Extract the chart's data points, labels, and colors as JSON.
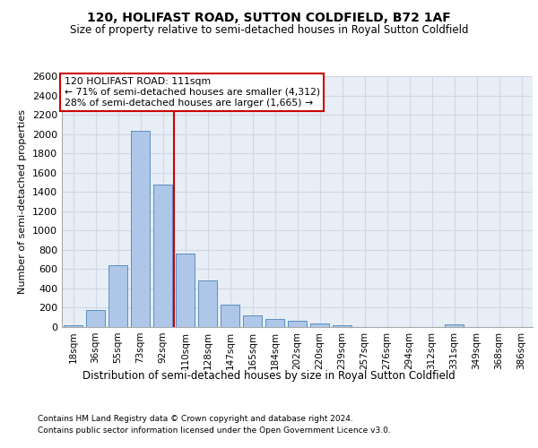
{
  "title": "120, HOLIFAST ROAD, SUTTON COLDFIELD, B72 1AF",
  "subtitle": "Size of property relative to semi-detached houses in Royal Sutton Coldfield",
  "xlabel_bottom": "Distribution of semi-detached houses by size in Royal Sutton Coldfield",
  "ylabel": "Number of semi-detached properties",
  "footnote1": "Contains HM Land Registry data © Crown copyright and database right 2024.",
  "footnote2": "Contains public sector information licensed under the Open Government Licence v3.0.",
  "categories": [
    "18sqm",
    "36sqm",
    "55sqm",
    "73sqm",
    "92sqm",
    "110sqm",
    "128sqm",
    "147sqm",
    "165sqm",
    "184sqm",
    "202sqm",
    "220sqm",
    "239sqm",
    "257sqm",
    "276sqm",
    "294sqm",
    "312sqm",
    "331sqm",
    "349sqm",
    "368sqm",
    "386sqm"
  ],
  "values": [
    15,
    175,
    645,
    2030,
    1480,
    760,
    480,
    235,
    125,
    80,
    65,
    35,
    20,
    0,
    0,
    0,
    0,
    25,
    0,
    0,
    0
  ],
  "bar_color": "#aec6e8",
  "bar_edge_color": "#5a8fc0",
  "ylim_max": 2600,
  "ytick_step": 200,
  "vline_bin_index": 4,
  "annotation_title": "120 HOLIFAST ROAD: 111sqm",
  "annotation_line1": "← 71% of semi-detached houses are smaller (4,312)",
  "annotation_line2": "28% of semi-detached houses are larger (1,665) →",
  "vline_color": "#cc0000",
  "grid_color": "#d0d8e8",
  "background_color": "#e8eef5",
  "fig_width": 6.0,
  "fig_height": 5.0,
  "dpi": 100
}
